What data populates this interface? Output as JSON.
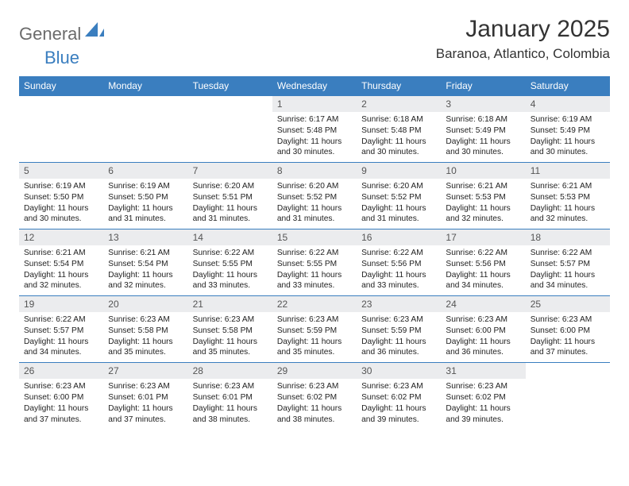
{
  "brand": {
    "general": "General",
    "blue": "Blue",
    "accent_color": "#3a7ebf"
  },
  "title": "January 2025",
  "location": "Baranoa, Atlantico, Colombia",
  "header_color": "#3a7ebf",
  "daynum_bg": "#ebecee",
  "days_of_week": [
    "Sunday",
    "Monday",
    "Tuesday",
    "Wednesday",
    "Thursday",
    "Friday",
    "Saturday"
  ],
  "weeks": [
    [
      {
        "n": "",
        "sr": "",
        "ss": "",
        "dl": ""
      },
      {
        "n": "",
        "sr": "",
        "ss": "",
        "dl": ""
      },
      {
        "n": "",
        "sr": "",
        "ss": "",
        "dl": ""
      },
      {
        "n": "1",
        "sr": "6:17 AM",
        "ss": "5:48 PM",
        "dl": "11 hours and 30 minutes."
      },
      {
        "n": "2",
        "sr": "6:18 AM",
        "ss": "5:48 PM",
        "dl": "11 hours and 30 minutes."
      },
      {
        "n": "3",
        "sr": "6:18 AM",
        "ss": "5:49 PM",
        "dl": "11 hours and 30 minutes."
      },
      {
        "n": "4",
        "sr": "6:19 AM",
        "ss": "5:49 PM",
        "dl": "11 hours and 30 minutes."
      }
    ],
    [
      {
        "n": "5",
        "sr": "6:19 AM",
        "ss": "5:50 PM",
        "dl": "11 hours and 30 minutes."
      },
      {
        "n": "6",
        "sr": "6:19 AM",
        "ss": "5:50 PM",
        "dl": "11 hours and 31 minutes."
      },
      {
        "n": "7",
        "sr": "6:20 AM",
        "ss": "5:51 PM",
        "dl": "11 hours and 31 minutes."
      },
      {
        "n": "8",
        "sr": "6:20 AM",
        "ss": "5:52 PM",
        "dl": "11 hours and 31 minutes."
      },
      {
        "n": "9",
        "sr": "6:20 AM",
        "ss": "5:52 PM",
        "dl": "11 hours and 31 minutes."
      },
      {
        "n": "10",
        "sr": "6:21 AM",
        "ss": "5:53 PM",
        "dl": "11 hours and 32 minutes."
      },
      {
        "n": "11",
        "sr": "6:21 AM",
        "ss": "5:53 PM",
        "dl": "11 hours and 32 minutes."
      }
    ],
    [
      {
        "n": "12",
        "sr": "6:21 AM",
        "ss": "5:54 PM",
        "dl": "11 hours and 32 minutes."
      },
      {
        "n": "13",
        "sr": "6:21 AM",
        "ss": "5:54 PM",
        "dl": "11 hours and 32 minutes."
      },
      {
        "n": "14",
        "sr": "6:22 AM",
        "ss": "5:55 PM",
        "dl": "11 hours and 33 minutes."
      },
      {
        "n": "15",
        "sr": "6:22 AM",
        "ss": "5:55 PM",
        "dl": "11 hours and 33 minutes."
      },
      {
        "n": "16",
        "sr": "6:22 AM",
        "ss": "5:56 PM",
        "dl": "11 hours and 33 minutes."
      },
      {
        "n": "17",
        "sr": "6:22 AM",
        "ss": "5:56 PM",
        "dl": "11 hours and 34 minutes."
      },
      {
        "n": "18",
        "sr": "6:22 AM",
        "ss": "5:57 PM",
        "dl": "11 hours and 34 minutes."
      }
    ],
    [
      {
        "n": "19",
        "sr": "6:22 AM",
        "ss": "5:57 PM",
        "dl": "11 hours and 34 minutes."
      },
      {
        "n": "20",
        "sr": "6:23 AM",
        "ss": "5:58 PM",
        "dl": "11 hours and 35 minutes."
      },
      {
        "n": "21",
        "sr": "6:23 AM",
        "ss": "5:58 PM",
        "dl": "11 hours and 35 minutes."
      },
      {
        "n": "22",
        "sr": "6:23 AM",
        "ss": "5:59 PM",
        "dl": "11 hours and 35 minutes."
      },
      {
        "n": "23",
        "sr": "6:23 AM",
        "ss": "5:59 PM",
        "dl": "11 hours and 36 minutes."
      },
      {
        "n": "24",
        "sr": "6:23 AM",
        "ss": "6:00 PM",
        "dl": "11 hours and 36 minutes."
      },
      {
        "n": "25",
        "sr": "6:23 AM",
        "ss": "6:00 PM",
        "dl": "11 hours and 37 minutes."
      }
    ],
    [
      {
        "n": "26",
        "sr": "6:23 AM",
        "ss": "6:00 PM",
        "dl": "11 hours and 37 minutes."
      },
      {
        "n": "27",
        "sr": "6:23 AM",
        "ss": "6:01 PM",
        "dl": "11 hours and 37 minutes."
      },
      {
        "n": "28",
        "sr": "6:23 AM",
        "ss": "6:01 PM",
        "dl": "11 hours and 38 minutes."
      },
      {
        "n": "29",
        "sr": "6:23 AM",
        "ss": "6:02 PM",
        "dl": "11 hours and 38 minutes."
      },
      {
        "n": "30",
        "sr": "6:23 AM",
        "ss": "6:02 PM",
        "dl": "11 hours and 39 minutes."
      },
      {
        "n": "31",
        "sr": "6:23 AM",
        "ss": "6:02 PM",
        "dl": "11 hours and 39 minutes."
      },
      {
        "n": "",
        "sr": "",
        "ss": "",
        "dl": ""
      }
    ]
  ],
  "labels": {
    "sunrise": "Sunrise:",
    "sunset": "Sunset:",
    "daylight": "Daylight:"
  }
}
